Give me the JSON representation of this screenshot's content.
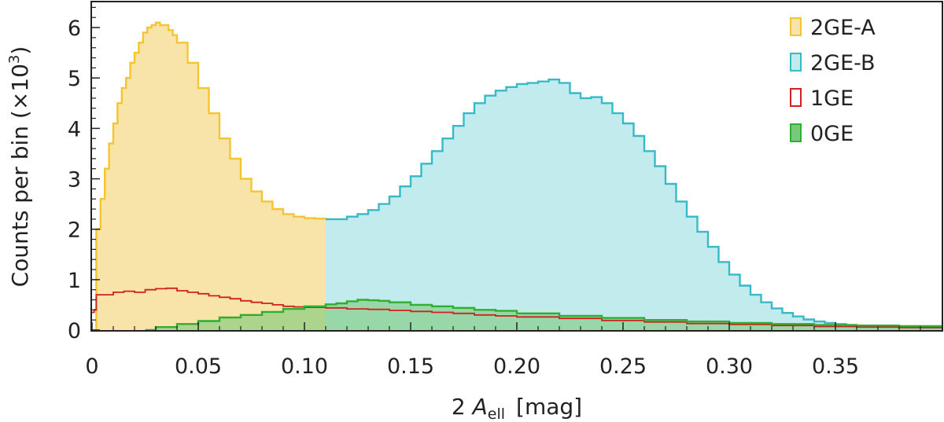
{
  "chart_data": {
    "type": "histogram",
    "title": "",
    "xlabel": {
      "prefix": "2 ",
      "symbol": "A",
      "subscript": "ell",
      "unit": "[mag]"
    },
    "ylabel": {
      "text": "Counts per bin (×10",
      "superscript": "3",
      "close": ")"
    },
    "xlim": [
      0,
      0.4
    ],
    "ylim": [
      0,
      6.5
    ],
    "xticks": [
      0,
      0.05,
      0.1,
      0.15,
      0.2,
      0.25,
      0.3,
      0.35
    ],
    "xtick_labels": [
      "0",
      "0.05",
      "0.10",
      "0.15",
      "0.20",
      "0.25",
      "0.30",
      "0.35"
    ],
    "yticks": [
      0,
      1,
      2,
      3,
      4,
      5,
      6
    ],
    "ytick_labels": [
      "0",
      "1",
      "2",
      "3",
      "4",
      "5",
      "6"
    ],
    "legend_position": "top-right",
    "grid": false,
    "series": [
      {
        "name": "2GE-A",
        "style": "filled",
        "color": "#f4c531",
        "fill": "#f8e3a8",
        "x_range": [
          0,
          0.11
        ],
        "points": [
          [
            0.0,
            0
          ],
          [
            0.002,
            2.0
          ],
          [
            0.004,
            2.6
          ],
          [
            0.006,
            3.2
          ],
          [
            0.008,
            3.7
          ],
          [
            0.01,
            4.1
          ],
          [
            0.012,
            4.5
          ],
          [
            0.014,
            4.8
          ],
          [
            0.016,
            5.0
          ],
          [
            0.018,
            5.3
          ],
          [
            0.02,
            5.5
          ],
          [
            0.022,
            5.7
          ],
          [
            0.024,
            5.9
          ],
          [
            0.026,
            6.0
          ],
          [
            0.028,
            6.05
          ],
          [
            0.03,
            6.1
          ],
          [
            0.032,
            6.05
          ],
          [
            0.034,
            6.05
          ],
          [
            0.036,
            5.95
          ],
          [
            0.038,
            5.85
          ],
          [
            0.04,
            5.7
          ],
          [
            0.045,
            5.3
          ],
          [
            0.05,
            4.8
          ],
          [
            0.055,
            4.3
          ],
          [
            0.06,
            3.8
          ],
          [
            0.065,
            3.4
          ],
          [
            0.07,
            3.0
          ],
          [
            0.075,
            2.75
          ],
          [
            0.08,
            2.55
          ],
          [
            0.085,
            2.4
          ],
          [
            0.09,
            2.3
          ],
          [
            0.095,
            2.25
          ],
          [
            0.1,
            2.22
          ],
          [
            0.105,
            2.21
          ],
          [
            0.11,
            2.2
          ]
        ]
      },
      {
        "name": "2GE-B",
        "style": "filled",
        "color": "#37b9c8",
        "fill": "#c2ebee",
        "x_range": [
          0.11,
          0.4
        ],
        "points": [
          [
            0.11,
            2.2
          ],
          [
            0.115,
            2.2
          ],
          [
            0.12,
            2.25
          ],
          [
            0.125,
            2.3
          ],
          [
            0.13,
            2.38
          ],
          [
            0.135,
            2.5
          ],
          [
            0.14,
            2.65
          ],
          [
            0.145,
            2.85
          ],
          [
            0.15,
            3.05
          ],
          [
            0.155,
            3.3
          ],
          [
            0.16,
            3.55
          ],
          [
            0.165,
            3.8
          ],
          [
            0.17,
            4.05
          ],
          [
            0.175,
            4.3
          ],
          [
            0.18,
            4.5
          ],
          [
            0.185,
            4.65
          ],
          [
            0.19,
            4.75
          ],
          [
            0.195,
            4.82
          ],
          [
            0.2,
            4.88
          ],
          [
            0.205,
            4.9
          ],
          [
            0.21,
            4.93
          ],
          [
            0.215,
            4.97
          ],
          [
            0.22,
            4.9
          ],
          [
            0.225,
            4.7
          ],
          [
            0.23,
            4.6
          ],
          [
            0.235,
            4.62
          ],
          [
            0.24,
            4.5
          ],
          [
            0.245,
            4.3
          ],
          [
            0.25,
            4.1
          ],
          [
            0.255,
            3.85
          ],
          [
            0.26,
            3.55
          ],
          [
            0.265,
            3.25
          ],
          [
            0.27,
            2.9
          ],
          [
            0.275,
            2.55
          ],
          [
            0.28,
            2.25
          ],
          [
            0.285,
            1.95
          ],
          [
            0.29,
            1.65
          ],
          [
            0.295,
            1.35
          ],
          [
            0.3,
            1.1
          ],
          [
            0.305,
            0.88
          ],
          [
            0.31,
            0.7
          ],
          [
            0.315,
            0.55
          ],
          [
            0.32,
            0.43
          ],
          [
            0.325,
            0.34
          ],
          [
            0.33,
            0.27
          ],
          [
            0.335,
            0.21
          ],
          [
            0.34,
            0.17
          ],
          [
            0.345,
            0.14
          ],
          [
            0.35,
            0.12
          ],
          [
            0.355,
            0.1
          ],
          [
            0.36,
            0.09
          ],
          [
            0.37,
            0.07
          ],
          [
            0.38,
            0.06
          ],
          [
            0.39,
            0.05
          ],
          [
            0.4,
            0.05
          ]
        ]
      },
      {
        "name": "1GE",
        "style": "step",
        "color": "#d02020",
        "points": [
          [
            0.0,
            0.35
          ],
          [
            0.001,
            0.4
          ],
          [
            0.002,
            0.7
          ],
          [
            0.006,
            0.7
          ],
          [
            0.01,
            0.75
          ],
          [
            0.015,
            0.77
          ],
          [
            0.02,
            0.75
          ],
          [
            0.025,
            0.8
          ],
          [
            0.03,
            0.82
          ],
          [
            0.035,
            0.83
          ],
          [
            0.04,
            0.78
          ],
          [
            0.045,
            0.75
          ],
          [
            0.05,
            0.72
          ],
          [
            0.055,
            0.68
          ],
          [
            0.06,
            0.65
          ],
          [
            0.065,
            0.62
          ],
          [
            0.07,
            0.58
          ],
          [
            0.075,
            0.55
          ],
          [
            0.08,
            0.53
          ],
          [
            0.085,
            0.5
          ],
          [
            0.09,
            0.47
          ],
          [
            0.095,
            0.46
          ],
          [
            0.1,
            0.45
          ],
          [
            0.11,
            0.44
          ],
          [
            0.12,
            0.42
          ],
          [
            0.13,
            0.41
          ],
          [
            0.14,
            0.39
          ],
          [
            0.15,
            0.37
          ],
          [
            0.16,
            0.35
          ],
          [
            0.17,
            0.33
          ],
          [
            0.18,
            0.3
          ],
          [
            0.19,
            0.28
          ],
          [
            0.2,
            0.26
          ],
          [
            0.22,
            0.23
          ],
          [
            0.24,
            0.19
          ],
          [
            0.26,
            0.16
          ],
          [
            0.28,
            0.13
          ],
          [
            0.3,
            0.11
          ],
          [
            0.32,
            0.09
          ],
          [
            0.34,
            0.07
          ],
          [
            0.36,
            0.06
          ],
          [
            0.38,
            0.05
          ],
          [
            0.4,
            0.04
          ]
        ]
      },
      {
        "name": "0GE",
        "style": "filled",
        "color": "#2fae2f",
        "fill": "#79c97a",
        "fill_opacity": 0.6,
        "points": [
          [
            0.025,
            0
          ],
          [
            0.03,
            0.06
          ],
          [
            0.04,
            0.12
          ],
          [
            0.05,
            0.18
          ],
          [
            0.06,
            0.25
          ],
          [
            0.07,
            0.3
          ],
          [
            0.08,
            0.36
          ],
          [
            0.09,
            0.42
          ],
          [
            0.1,
            0.47
          ],
          [
            0.11,
            0.51
          ],
          [
            0.115,
            0.53
          ],
          [
            0.12,
            0.57
          ],
          [
            0.125,
            0.6
          ],
          [
            0.13,
            0.59
          ],
          [
            0.135,
            0.58
          ],
          [
            0.14,
            0.55
          ],
          [
            0.15,
            0.5
          ],
          [
            0.16,
            0.47
          ],
          [
            0.17,
            0.44
          ],
          [
            0.18,
            0.4
          ],
          [
            0.19,
            0.38
          ],
          [
            0.2,
            0.33
          ],
          [
            0.22,
            0.28
          ],
          [
            0.24,
            0.24
          ],
          [
            0.26,
            0.2
          ],
          [
            0.28,
            0.17
          ],
          [
            0.3,
            0.14
          ],
          [
            0.32,
            0.12
          ],
          [
            0.34,
            0.1
          ],
          [
            0.36,
            0.09
          ],
          [
            0.38,
            0.08
          ],
          [
            0.4,
            0.07
          ]
        ]
      }
    ]
  }
}
